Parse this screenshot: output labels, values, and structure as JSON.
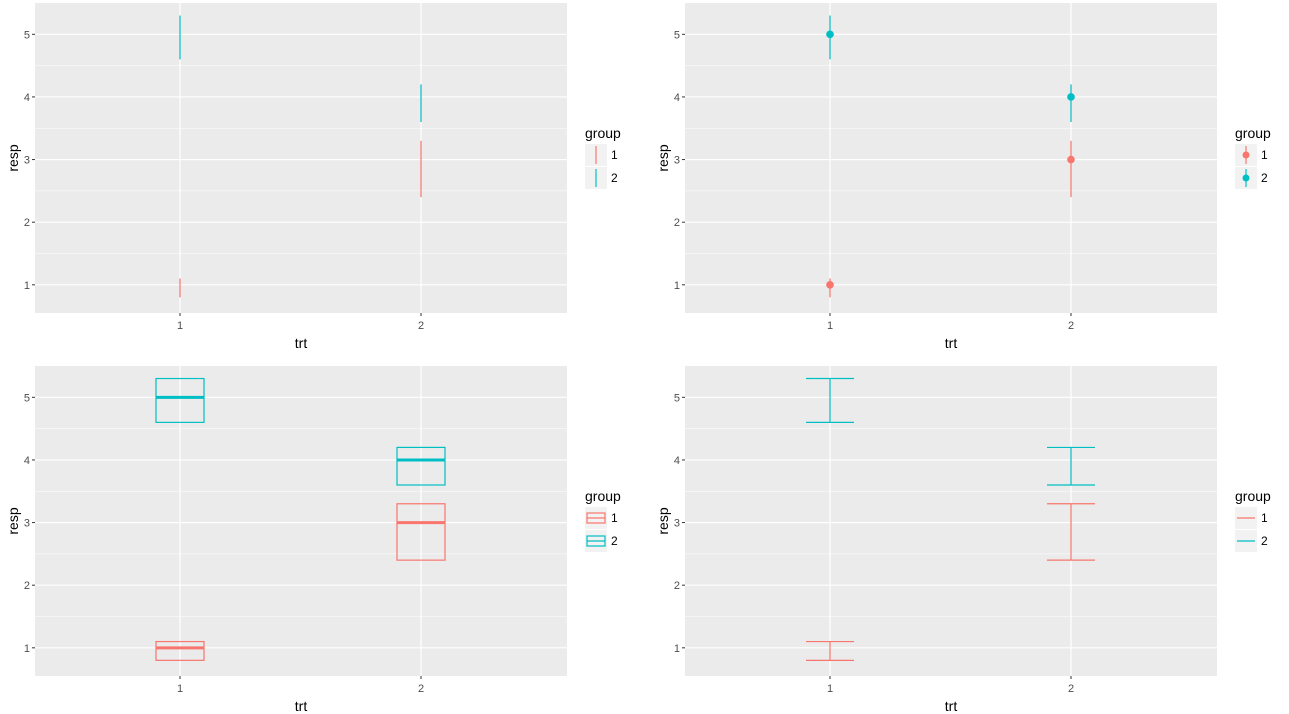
{
  "colors": {
    "group1": "#F8766D",
    "group2": "#00BFC4",
    "panel_bg": "#EBEBEB",
    "grid": "#FFFFFF",
    "text": "#4D4D4D"
  },
  "chart_data": [
    {
      "type": "linerange",
      "xlabel": "trt",
      "ylabel": "resp",
      "categories": [
        "1",
        "2"
      ],
      "ylim": [
        0.55,
        5.5
      ],
      "yticks": [
        "1",
        "2",
        "3",
        "4",
        "5"
      ],
      "grid": true,
      "legend": {
        "title": "group",
        "position": "right",
        "entries": [
          "1",
          "2"
        ]
      },
      "series": [
        {
          "name": "1",
          "resp": [
            1.0,
            3.0
          ],
          "lower": [
            0.8,
            2.4
          ],
          "upper": [
            1.1,
            3.3
          ]
        },
        {
          "name": "2",
          "resp": [
            5.0,
            4.0
          ],
          "lower": [
            4.6,
            3.6
          ],
          "upper": [
            5.3,
            4.2
          ]
        }
      ]
    },
    {
      "type": "pointrange",
      "xlabel": "trt",
      "ylabel": "resp",
      "categories": [
        "1",
        "2"
      ],
      "ylim": [
        0.55,
        5.5
      ],
      "yticks": [
        "1",
        "2",
        "3",
        "4",
        "5"
      ],
      "grid": true,
      "legend": {
        "title": "group",
        "position": "right",
        "entries": [
          "1",
          "2"
        ]
      },
      "series": [
        {
          "name": "1",
          "resp": [
            1.0,
            3.0
          ],
          "lower": [
            0.8,
            2.4
          ],
          "upper": [
            1.1,
            3.3
          ]
        },
        {
          "name": "2",
          "resp": [
            5.0,
            4.0
          ],
          "lower": [
            4.6,
            3.6
          ],
          "upper": [
            5.3,
            4.2
          ]
        }
      ]
    },
    {
      "type": "crossbar",
      "xlabel": "trt",
      "ylabel": "resp",
      "categories": [
        "1",
        "2"
      ],
      "ylim": [
        0.55,
        5.5
      ],
      "yticks": [
        "1",
        "2",
        "3",
        "4",
        "5"
      ],
      "grid": true,
      "legend": {
        "title": "group",
        "position": "right",
        "entries": [
          "1",
          "2"
        ]
      },
      "series": [
        {
          "name": "1",
          "resp": [
            1.0,
            3.0
          ],
          "lower": [
            0.8,
            2.4
          ],
          "upper": [
            1.1,
            3.3
          ]
        },
        {
          "name": "2",
          "resp": [
            5.0,
            4.0
          ],
          "lower": [
            4.6,
            3.6
          ],
          "upper": [
            5.3,
            4.2
          ]
        }
      ]
    },
    {
      "type": "errorbar",
      "xlabel": "trt",
      "ylabel": "resp",
      "categories": [
        "1",
        "2"
      ],
      "ylim": [
        0.55,
        5.5
      ],
      "yticks": [
        "1",
        "2",
        "3",
        "4",
        "5"
      ],
      "grid": true,
      "legend": {
        "title": "group",
        "position": "right",
        "entries": [
          "1",
          "2"
        ]
      },
      "series": [
        {
          "name": "1",
          "resp": [
            1.0,
            3.0
          ],
          "lower": [
            0.8,
            2.4
          ],
          "upper": [
            1.1,
            3.3
          ]
        },
        {
          "name": "2",
          "resp": [
            5.0,
            4.0
          ],
          "lower": [
            4.6,
            3.6
          ],
          "upper": [
            5.3,
            4.2
          ]
        }
      ]
    }
  ]
}
